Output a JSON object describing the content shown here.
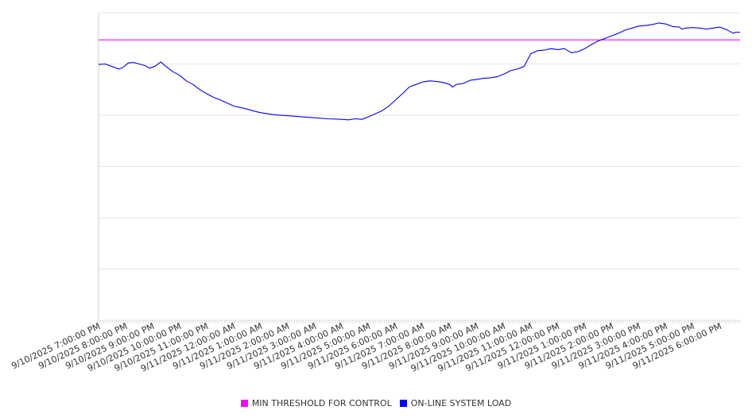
{
  "chart_data": {
    "type": "line",
    "title": "",
    "xlabel": "",
    "ylabel": "",
    "ylim": [
      0,
      6
    ],
    "grid": true,
    "legend_position": "bottom",
    "x_tick_labels": [
      "9/10/2025 7:00:00 PM",
      "9/10/2025 8:00:00 PM",
      "9/10/2025 9:00:00 PM",
      "9/10/2025 10:00:00 PM",
      "9/10/2025 11:00:00 PM",
      "9/11/2025 12:00:00 AM",
      "9/11/2025 1:00:00 AM",
      "9/11/2025 2:00:00 AM",
      "9/11/2025 3:00:00 AM",
      "9/11/2025 4:00:00 AM",
      "9/11/2025 5:00:00 AM",
      "9/11/2025 6:00:00 AM",
      "9/11/2025 7:00:00 AM",
      "9/11/2025 8:00:00 AM",
      "9/11/2025 9:00:00 AM",
      "9/11/2025 10:00:00 AM",
      "9/11/2025 11:00:00 AM",
      "9/11/2025 12:00:00 PM",
      "9/11/2025 1:00:00 PM",
      "9/11/2025 2:00:00 PM",
      "9/11/2025 3:00:00 PM",
      "9/11/2025 4:00:00 PM",
      "9/11/2025 5:00:00 PM",
      "9/11/2025 6:00:00 PM"
    ],
    "x_hours": [
      0,
      23.75
    ],
    "series": [
      {
        "name": "MIN THRESHOLD FOR CONTROL",
        "color": "#ff00ff",
        "x": [
          0,
          23.75
        ],
        "y": [
          5.47,
          5.47
        ]
      },
      {
        "name": "ON-LINE SYSTEM LOAD",
        "color": "#0000ff",
        "x": [
          0,
          0.25,
          0.5,
          0.75,
          0.9,
          1.1,
          1.3,
          1.5,
          1.7,
          1.9,
          2.1,
          2.3,
          2.5,
          2.75,
          3.0,
          3.25,
          3.5,
          3.75,
          4.0,
          4.25,
          4.5,
          4.75,
          5.0,
          5.25,
          5.5,
          5.75,
          6.0,
          6.5,
          7.0,
          7.5,
          8.0,
          8.5,
          9.0,
          9.25,
          9.5,
          9.75,
          10.0,
          10.25,
          10.5,
          10.75,
          11.0,
          11.25,
          11.5,
          11.75,
          12.0,
          12.25,
          12.5,
          12.75,
          13.0,
          13.1,
          13.25,
          13.5,
          13.75,
          14.0,
          14.25,
          14.5,
          14.75,
          15.0,
          15.25,
          15.5,
          15.75,
          16.0,
          16.25,
          16.5,
          16.75,
          17.0,
          17.25,
          17.5,
          17.75,
          18.0,
          18.25,
          18.5,
          18.75,
          19.0,
          19.25,
          19.5,
          19.75,
          20.0,
          20.25,
          20.5,
          20.75,
          21.0,
          21.25,
          21.5,
          21.6,
          21.75,
          22.0,
          22.25,
          22.5,
          22.75,
          23.0,
          23.25,
          23.5,
          23.6,
          23.75
        ],
        "y": [
          4.99,
          5.0,
          4.95,
          4.9,
          4.93,
          5.02,
          5.03,
          5.0,
          4.97,
          4.92,
          4.96,
          5.04,
          4.95,
          4.85,
          4.78,
          4.67,
          4.6,
          4.5,
          4.42,
          4.35,
          4.3,
          4.24,
          4.18,
          4.15,
          4.12,
          4.08,
          4.05,
          4.01,
          3.99,
          3.97,
          3.95,
          3.93,
          3.92,
          3.91,
          3.93,
          3.92,
          3.97,
          4.03,
          4.09,
          4.18,
          4.3,
          4.42,
          4.55,
          4.6,
          4.65,
          4.67,
          4.66,
          4.64,
          4.6,
          4.55,
          4.6,
          4.62,
          4.68,
          4.7,
          4.72,
          4.73,
          4.75,
          4.8,
          4.87,
          4.9,
          4.95,
          5.2,
          5.26,
          5.27,
          5.3,
          5.28,
          5.3,
          5.22,
          5.24,
          5.3,
          5.38,
          5.45,
          5.5,
          5.55,
          5.6,
          5.66,
          5.7,
          5.74,
          5.75,
          5.77,
          5.8,
          5.78,
          5.73,
          5.72,
          5.68,
          5.7,
          5.71,
          5.7,
          5.68,
          5.7,
          5.72,
          5.67,
          5.6,
          5.62,
          5.62
        ]
      }
    ]
  }
}
